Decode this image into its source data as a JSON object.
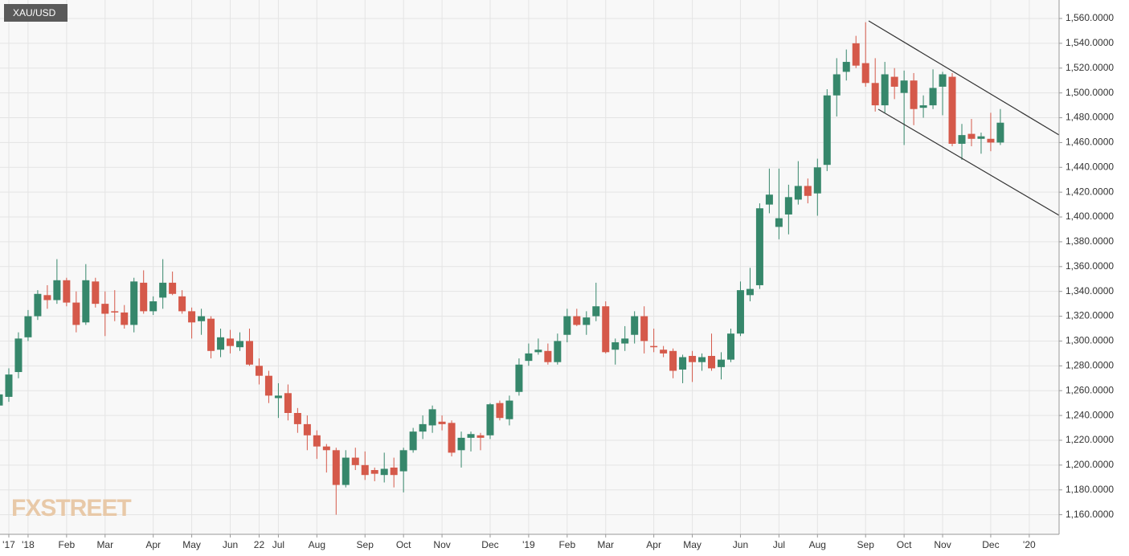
{
  "chart_data": {
    "type": "candlestick",
    "title": "XAU/USD",
    "watermark": "FXSTREET",
    "categories": [
      null,
      "'17",
      null,
      "'18",
      null,
      null,
      null,
      "Feb",
      null,
      null,
      null,
      "Mar",
      null,
      null,
      null,
      null,
      "Apr",
      null,
      null,
      null,
      "May",
      null,
      null,
      null,
      "Jun",
      null,
      null,
      "22",
      null,
      "Jul",
      null,
      null,
      null,
      "Aug",
      null,
      null,
      null,
      null,
      "Sep",
      null,
      null,
      null,
      "Oct",
      null,
      null,
      null,
      "Nov",
      null,
      null,
      null,
      null,
      "Dec",
      null,
      null,
      null,
      "'19",
      null,
      null,
      null,
      "Feb",
      null,
      null,
      null,
      "Mar",
      null,
      null,
      null,
      null,
      "Apr",
      null,
      null,
      null,
      "May",
      null,
      null,
      null,
      null,
      "Jun",
      null,
      null,
      null,
      "Jul",
      null,
      null,
      null,
      "Aug",
      null,
      null,
      null,
      null,
      "Sep",
      null,
      null,
      null,
      "Oct",
      null,
      null,
      null,
      "Nov",
      null,
      null,
      null,
      null,
      "Dec",
      null,
      null,
      null,
      "'20",
      null,
      null
    ],
    "open": [
      1248,
      1255,
      1275,
      1303,
      1320,
      1337,
      1333,
      1349,
      1331,
      1315,
      1348,
      1330,
      1324,
      1323,
      1313,
      1347,
      1324,
      1335,
      1347,
      1336,
      1324,
      1316,
      1318,
      1293,
      1302,
      1295,
      1300,
      1280,
      1272,
      1254,
      1258,
      1242,
      1233,
      1224,
      1215,
      1212,
      1184,
      1206,
      1200,
      1196,
      1192,
      1198,
      1195,
      1212,
      1227,
      1232,
      1235,
      1234,
      1212,
      1222,
      1224,
      1224,
      1250,
      1237,
      1259,
      1284,
      1291,
      1292,
      1283,
      1305,
      1320,
      1313,
      1320,
      1328,
      1293,
      1298,
      1305,
      1320,
      1296,
      1293,
      1292,
      1277,
      1288,
      1283,
      1288,
      1279,
      1285,
      1306,
      1337,
      1345,
      1410,
      1392,
      1402,
      1414,
      1425,
      1419,
      1442,
      1498,
      1517,
      1540,
      1524,
      1508,
      1490,
      1513,
      1500,
      1510,
      1488,
      1490,
      1505,
      1513,
      1459,
      1467,
      1463,
      1463,
      1460,
      null,
      null,
      null,
      null,
      null
    ],
    "high": [
      1262,
      1278,
      1307,
      1325,
      1341,
      1345,
      1366,
      1351,
      1340,
      1362,
      1351,
      1340,
      1341,
      1329,
      1351,
      1357,
      1336,
      1366,
      1356,
      1341,
      1327,
      1326,
      1320,
      1310,
      1309,
      1307,
      1310,
      1286,
      1276,
      1266,
      1265,
      1246,
      1240,
      1228,
      1217,
      1214,
      1212,
      1214,
      1211,
      1198,
      1210,
      1206,
      1214,
      1230,
      1240,
      1248,
      1240,
      1236,
      1227,
      1227,
      1226,
      1250,
      1252,
      1256,
      1286,
      1298,
      1302,
      1298,
      1306,
      1326,
      1326,
      1324,
      1347,
      1332,
      1302,
      1312,
      1324,
      1328,
      1310,
      1296,
      1294,
      1289,
      1292,
      1290,
      1306,
      1291,
      1310,
      1348,
      1359,
      1411,
      1439,
      1439,
      1426,
      1445,
      1431,
      1447,
      1503,
      1528,
      1535,
      1546,
      1557,
      1528,
      1525,
      1520,
      1518,
      1516,
      1498,
      1519,
      1517,
      1516,
      1475,
      1479,
      1468,
      1484,
      1487,
      null,
      null,
      null,
      null,
      null
    ],
    "low": [
      1242,
      1251,
      1270,
      1300,
      1317,
      1326,
      1330,
      1328,
      1307,
      1313,
      1327,
      1304,
      1316,
      1310,
      1307,
      1322,
      1321,
      1326,
      1337,
      1322,
      1302,
      1305,
      1286,
      1287,
      1290,
      1292,
      1280,
      1265,
      1250,
      1238,
      1236,
      1226,
      1212,
      1205,
      1194,
      1160,
      1182,
      1196,
      1188,
      1187,
      1186,
      1182,
      1178,
      1210,
      1221,
      1226,
      1228,
      1207,
      1198,
      1211,
      1212,
      1221,
      1236,
      1232,
      1256,
      1280,
      1289,
      1281,
      1281,
      1299,
      1312,
      1305,
      1316,
      1290,
      1281,
      1292,
      1298,
      1290,
      1291,
      1287,
      1270,
      1266,
      1267,
      1276,
      1276,
      1269,
      1283,
      1304,
      1332,
      1342,
      1403,
      1382,
      1386,
      1410,
      1411,
      1401,
      1437,
      1481,
      1510,
      1520,
      1505,
      1485,
      1484,
      1495,
      1458,
      1474,
      1480,
      1487,
      1482,
      1457,
      1446,
      1457,
      1451,
      1453,
      1458,
      null,
      null,
      null,
      null,
      null
    ],
    "close": [
      1257,
      1273,
      1302,
      1320,
      1338,
      1333,
      1349,
      1331,
      1313,
      1349,
      1330,
      1322,
      1323,
      1313,
      1348,
      1324,
      1332,
      1347,
      1338,
      1324,
      1315,
      1320,
      1292,
      1303,
      1296,
      1300,
      1281,
      1272,
      1256,
      1256,
      1242,
      1233,
      1224,
      1215,
      1212,
      1184,
      1206,
      1200,
      1192,
      1193,
      1197,
      1192,
      1212,
      1227,
      1233,
      1245,
      1233,
      1210,
      1222,
      1225,
      1222,
      1249,
      1238,
      1252,
      1281,
      1290,
      1293,
      1283,
      1300,
      1320,
      1313,
      1319,
      1328,
      1291,
      1299,
      1302,
      1320,
      1300,
      1295,
      1290,
      1276,
      1287,
      1283,
      1287,
      1278,
      1285,
      1306,
      1341,
      1342,
      1407,
      1418,
      1399,
      1416,
      1425,
      1417,
      1440,
      1498,
      1515,
      1525,
      1522,
      1508,
      1490,
      1515,
      1505,
      1510,
      1487,
      1490,
      1504,
      1515,
      1459,
      1466,
      1463,
      1465,
      1460,
      1476,
      null,
      null,
      null,
      null,
      null
    ],
    "up_color": "#36876b",
    "down_color": "#d5594a",
    "ylim": [
      1144.2,
      1574.9
    ],
    "yticks": [
      {
        "value": 1160,
        "label": "1,160.0000"
      },
      {
        "value": 1180,
        "label": "1,180.0000"
      },
      {
        "value": 1200,
        "label": "1,200.0000"
      },
      {
        "value": 1220,
        "label": "1,220.0000"
      },
      {
        "value": 1240,
        "label": "1,240.0000"
      },
      {
        "value": 1260,
        "label": "1,260.0000"
      },
      {
        "value": 1280,
        "label": "1,280.0000"
      },
      {
        "value": 1300,
        "label": "1,300.0000"
      },
      {
        "value": 1320,
        "label": "1,320.0000"
      },
      {
        "value": 1340,
        "label": "1,340.0000"
      },
      {
        "value": 1360,
        "label": "1,360.0000"
      },
      {
        "value": 1380,
        "label": "1,380.0000"
      },
      {
        "value": 1400,
        "label": "1,400.0000"
      },
      {
        "value": 1420,
        "label": "1,420.0000"
      },
      {
        "value": 1440,
        "label": "1,440.0000"
      },
      {
        "value": 1460,
        "label": "1,460.0000"
      },
      {
        "value": 1480,
        "label": "1,480.0000"
      },
      {
        "value": 1500,
        "label": "1,500.0000"
      },
      {
        "value": 1520,
        "label": "1,520.0000"
      },
      {
        "value": 1540,
        "label": "1,540.0000"
      },
      {
        "value": 1560,
        "label": "1,560.0000"
      }
    ],
    "grid": true
  }
}
